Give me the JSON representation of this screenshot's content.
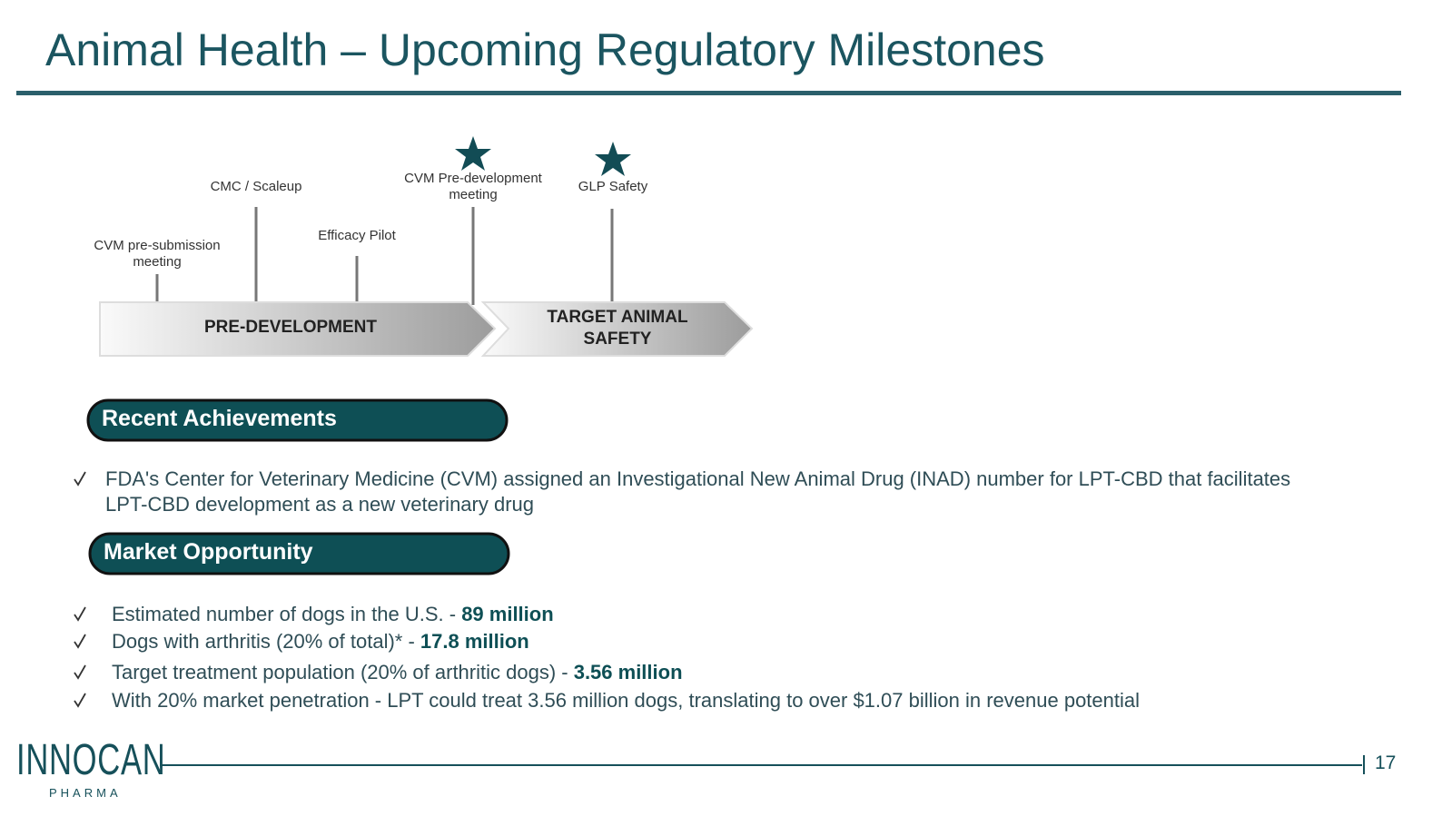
{
  "header": {
    "title": "Animal Health – Upcoming Regulatory Milestones"
  },
  "timeline": {
    "milestones": [
      "CVM pre-submission meeting",
      "CMC / Scaleup",
      "Efficacy Pilot",
      "CVM Pre-development meeting",
      "GLP Safety"
    ],
    "phases": [
      "PRE-DEVELOPMENT",
      "TARGET ANIMAL SAFETY"
    ]
  },
  "sections": [
    {
      "heading": "Recent Achievements",
      "items": [
        {
          "text": "FDA's Center for Veterinary Medicine (CVM) assigned an Investigational New Animal Drug (INAD) number for LPT-CBD that facilitates LPT-CBD development as a new veterinary drug"
        }
      ]
    },
    {
      "heading": "Market Opportunity",
      "items": [
        {
          "text": "Estimated number of dogs in the U.S. - ",
          "bold": "89 million"
        },
        {
          "text": "Dogs with arthritis (20% of total)* - ",
          "bold": "17.8 million"
        },
        {
          "text": "Target treatment population (20% of arthritic dogs) - ",
          "bold": "3.56 million"
        },
        {
          "text": "With 20% market penetration - LPT could treat 3.56 million dogs, translating to over $1.07 billion in revenue potential"
        }
      ]
    }
  ],
  "footer": {
    "logo": "INNOCAN",
    "logo_sub": "PHARMA",
    "page": "17"
  }
}
